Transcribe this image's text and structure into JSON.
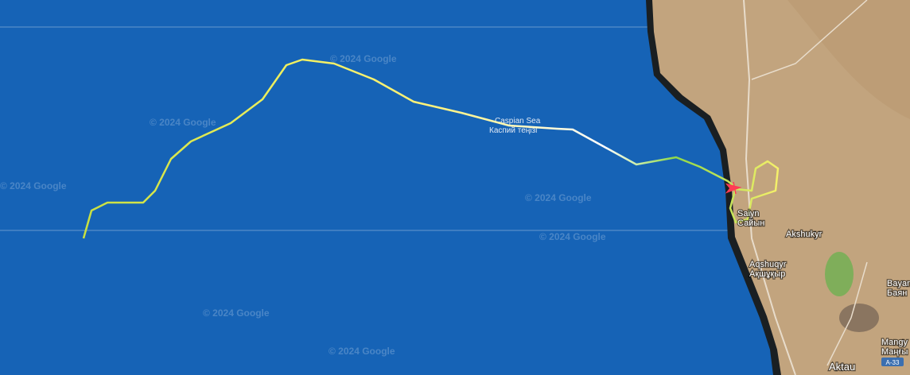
{
  "map": {
    "sea_label": [
      "Caspian Sea",
      "Каспий теңізі"
    ],
    "watermarks": [
      "© 2024 Google",
      "© 2024 Google",
      "© 2024 Google",
      "© 2024 Google",
      "© 2024 Google",
      "© 2024 Google",
      "© 2024 Google"
    ],
    "places": [
      {
        "name": "Saiyn",
        "local": "Сайын"
      },
      {
        "name": "Akshukyr"
      },
      {
        "name": "Aqshuqyr",
        "local": "Ақшұқыр"
      },
      {
        "name": "Bayan",
        "local": "Баян"
      },
      {
        "name": "Mangy",
        "local": "Маңғы"
      },
      {
        "name": "Aktau"
      }
    ],
    "road": "A-33"
  }
}
